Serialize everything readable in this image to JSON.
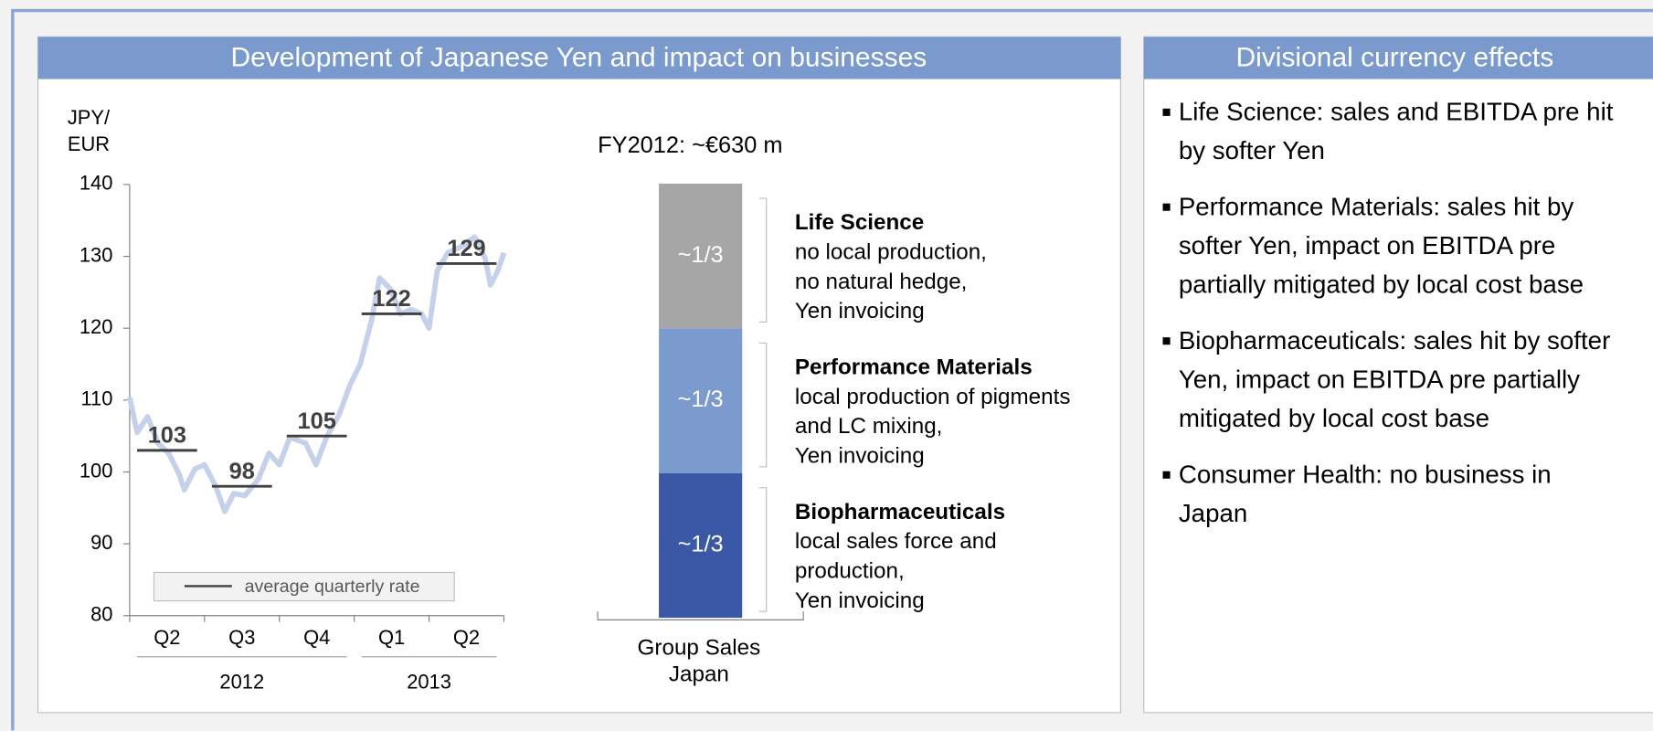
{
  "left_panel": {
    "title": "Development of Japanese Yen and impact on businesses"
  },
  "right_panel": {
    "title": "Divisional currency effects",
    "bullets": [
      "Life Science: sales and EBITDA pre hit by softer Yen",
      "Performance Materials: sales hit by softer Yen, impact on EBITDA pre partially mitigated by local cost base",
      "Biopharmaceuticals: sales hit by softer Yen, impact on EBITDA pre partially mitigated by local cost base",
      "Consumer Health: no business in Japan"
    ]
  },
  "chart_data": [
    {
      "type": "line",
      "y_label": "JPY/ EUR",
      "categories": [
        "Q2",
        "Q3",
        "Q4",
        "Q1",
        "Q2"
      ],
      "category_years": [
        "2012",
        "2012",
        "2012",
        "2013",
        "2013"
      ],
      "x": [
        0,
        0.1,
        0.24,
        0.38,
        0.52,
        0.66,
        0.73,
        0.87,
        1.0,
        1.15,
        1.27,
        1.39,
        1.54,
        1.72,
        1.86,
        2.0,
        2.14,
        2.35,
        2.49,
        2.63,
        2.8,
        2.94,
        3.08,
        3.23,
        3.34,
        3.48,
        3.62,
        3.76,
        3.9,
        4.0,
        4.11,
        4.25,
        4.46,
        4.61,
        4.75,
        4.82,
        4.92,
        5
      ],
      "values": [
        110.4,
        105.5,
        107.7,
        104,
        102.6,
        99.7,
        97.5,
        100.4,
        101,
        98,
        94.5,
        97,
        96.7,
        99,
        102.6,
        101,
        104.8,
        104,
        101,
        104.8,
        108,
        112,
        115,
        121,
        127,
        125.5,
        122,
        122.6,
        122,
        120,
        128,
        130.5,
        131.5,
        132.7,
        129.7,
        126,
        128,
        130.5
      ],
      "color": "#c5d0ea",
      "averages": {
        "name": "average quarterly rate",
        "values": [
          103,
          98,
          105,
          122,
          129
        ],
        "color": "#404040"
      },
      "xlim": [
        0,
        5
      ],
      "xticks": [
        0,
        1,
        2,
        3,
        4,
        5
      ],
      "ylim": [
        80,
        140
      ],
      "yticks": [
        80,
        90,
        100,
        110,
        120,
        130,
        140
      ]
    },
    {
      "type": "stacked_bar",
      "title": "FY2012: ~€630 m",
      "categories": [
        "Group Sales Japan"
      ],
      "ylim": [
        0,
        1
      ],
      "series": [
        {
          "name": "Biopharmaceuticals",
          "description": [
            "local sales force and",
            "production,",
            "Yen invoicing"
          ],
          "color": "#3a58a6",
          "values": [
            0.33
          ],
          "value_labels": [
            "~1/3"
          ]
        },
        {
          "name": "Performance Materials",
          "description": [
            "local production of pigments",
            "and LC mixing,",
            "Yen invoicing"
          ],
          "color": "#7b9bcf",
          "values": [
            0.33
          ],
          "value_labels": [
            "~1/3"
          ]
        },
        {
          "name": "Life Science",
          "description": [
            "no local production,",
            "no natural hedge,",
            "Yen invoicing"
          ],
          "color": "#a6a6a6",
          "values": [
            0.33
          ],
          "value_labels": [
            "~1/3"
          ]
        }
      ]
    }
  ]
}
